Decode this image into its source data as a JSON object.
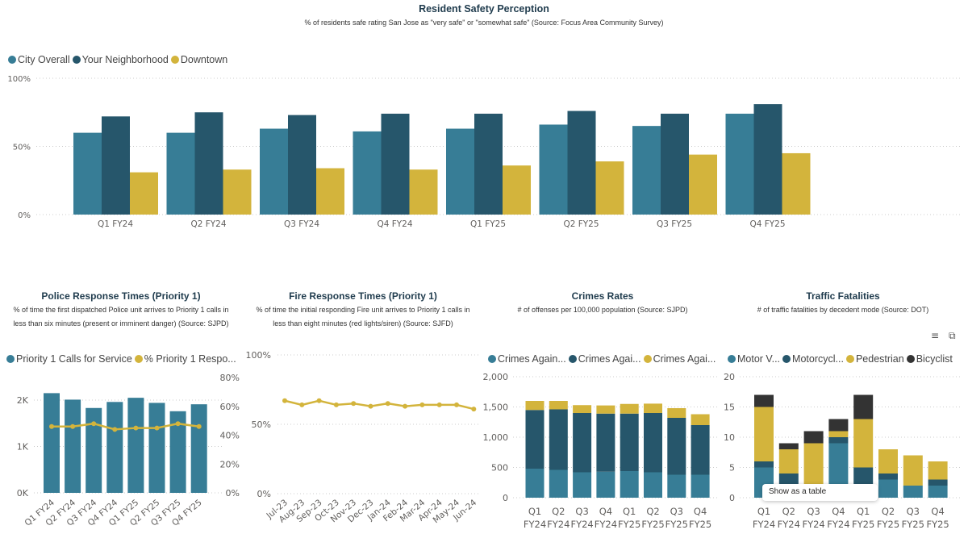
{
  "colors": {
    "teal": "#377d96",
    "dark": "#26566b",
    "gold": "#d3b43c",
    "black": "#333333"
  },
  "safety": {
    "title": "Resident Safety Perception",
    "subtitle": "% of residents safe rating San Jose as \"very safe\" or \"somewhat safe\"  (Source: Focus Area Community Survey)",
    "legend": [
      "City Overall",
      "Your Neighborhood",
      "Downtown"
    ]
  },
  "police": {
    "title": "Police Response Times (Priority 1)",
    "subtitle_1": "%  of time the first dispatched Police unit arrives to Priority 1 calls in",
    "subtitle_2": "less than six minutes (present or imminent danger) (Source: SJPD)",
    "legend": [
      "Priority 1 Calls for Service",
      "% Priority 1 Respo..."
    ]
  },
  "fire": {
    "title": "Fire Response Times (Priority 1)",
    "subtitle_1": "% of time the initial responding Fire unit arrives to Priority 1 calls in",
    "subtitle_2": "less than eight minutes (red lights/siren) (Source: SJFD)"
  },
  "crimes": {
    "title": "Crimes Rates",
    "subtitle": "# of offenses per 100,000 population (Source: SJPD)",
    "legend": [
      "Crimes Again...",
      "Crimes Agai...",
      "Crimes Agai..."
    ]
  },
  "traffic": {
    "title": "Traffic Fatalities",
    "subtitle": "# of traffic fatalities by decedent mode (Source: DOT)",
    "legend": [
      "Motor V...",
      "Motorcycl...",
      "Pedestrian",
      "Bicyclist"
    ],
    "tooltip": "Show as a table",
    "icons": [
      "filter-icon",
      "focus-mode-icon"
    ]
  },
  "chart_data": [
    {
      "id": "safety",
      "type": "bar",
      "grid": true,
      "legend": "top-left",
      "categories": [
        "Q1 FY24",
        "Q2 FY24",
        "Q3 FY24",
        "Q4 FY24",
        "Q1 FY25",
        "Q2 FY25",
        "Q3 FY25",
        "Q4 FY25"
      ],
      "ylim": [
        0,
        100
      ],
      "yticks": [
        "0%",
        "50%",
        "100%"
      ],
      "series": [
        {
          "name": "City Overall",
          "values": [
            60,
            60,
            63,
            61,
            63,
            66,
            65,
            74
          ]
        },
        {
          "name": "Your Neighborhood",
          "values": [
            72,
            75,
            73,
            74,
            74,
            76,
            74,
            81
          ]
        },
        {
          "name": "Downtown",
          "values": [
            31,
            33,
            34,
            33,
            36,
            39,
            44,
            45
          ]
        }
      ]
    },
    {
      "id": "police",
      "type": "bar+line",
      "grid": true,
      "legend": "top-left",
      "categories": [
        "Q1 FY24",
        "Q2 FY24",
        "Q3 FY24",
        "Q4 FY24",
        "Q1 FY25",
        "Q2 FY25",
        "Q3 FY25",
        "Q4 FY25"
      ],
      "ylim": [
        0,
        2000
      ],
      "yticks": [
        "0K",
        "1K",
        "2K"
      ],
      "y2lim": [
        0,
        80
      ],
      "y2ticks": [
        "0%",
        "20%",
        "40%",
        "60%",
        "80%"
      ],
      "series": [
        {
          "name": "Priority 1 Calls for Service",
          "type": "bar",
          "values": [
            2150,
            2010,
            1830,
            1960,
            2050,
            1940,
            1760,
            1910
          ]
        },
        {
          "name": "% Priority 1 Respo...",
          "type": "line",
          "axis": "right",
          "values": [
            46,
            46,
            48,
            44,
            45,
            45,
            48,
            46
          ]
        }
      ]
    },
    {
      "id": "fire",
      "type": "line",
      "grid": true,
      "categories": [
        "Jul-23",
        "Aug-23",
        "Sep-23",
        "Oct-23",
        "Nov-23",
        "Dec-23",
        "Jan-24",
        "Feb-24",
        "Mar-24",
        "Apr-24",
        "May-24",
        "Jun-24"
      ],
      "ylim": [
        0,
        100
      ],
      "yticks": [
        "0%",
        "50%",
        "100%"
      ],
      "series": [
        {
          "values": [
            67,
            64,
            67,
            64,
            65,
            63,
            65,
            63,
            64,
            64,
            64,
            61
          ]
        }
      ]
    },
    {
      "id": "crimes",
      "type": "stacked-bar",
      "grid": true,
      "legend": "top-left",
      "categories": [
        "Q1 FY24",
        "Q2 FY24",
        "Q3 FY24",
        "Q4 FY24",
        "Q1 FY25",
        "Q2 FY25",
        "Q3 FY25",
        "Q4 FY25"
      ],
      "ylim": [
        0,
        2000
      ],
      "yticks": [
        "0",
        "500",
        "1,000",
        "1,500",
        "2,000"
      ],
      "series": [
        {
          "name": "Crimes Again...",
          "values": [
            480,
            460,
            420,
            430,
            440,
            420,
            380,
            380
          ]
        },
        {
          "name": "Crimes Agai...",
          "values": [
            970,
            1000,
            980,
            960,
            950,
            980,
            940,
            820
          ]
        },
        {
          "name": "Crimes Agai...",
          "values": [
            150,
            140,
            130,
            135,
            160,
            155,
            160,
            180
          ]
        }
      ]
    },
    {
      "id": "traffic",
      "type": "stacked-bar",
      "grid": true,
      "legend": "top-left",
      "categories": [
        "Q1 FY24",
        "Q2 FY24",
        "Q3 FY24",
        "Q4 FY24",
        "Q1 FY25",
        "Q2 FY25",
        "Q3 FY25",
        "Q4 FY25"
      ],
      "ylim": [
        0,
        20
      ],
      "yticks": [
        "0",
        "5",
        "10",
        "15",
        "20"
      ],
      "series": [
        {
          "name": "Motor V...",
          "values": [
            5,
            2,
            0,
            9,
            0,
            3,
            2,
            2
          ]
        },
        {
          "name": "Motorcycl...",
          "values": [
            1,
            2,
            0,
            1,
            5,
            1,
            0,
            1
          ]
        },
        {
          "name": "Pedestrian",
          "values": [
            9,
            4,
            9,
            1,
            8,
            4,
            5,
            3
          ]
        },
        {
          "name": "Bicyclist",
          "values": [
            2,
            1,
            2,
            2,
            4,
            0,
            0,
            0
          ]
        }
      ]
    }
  ]
}
